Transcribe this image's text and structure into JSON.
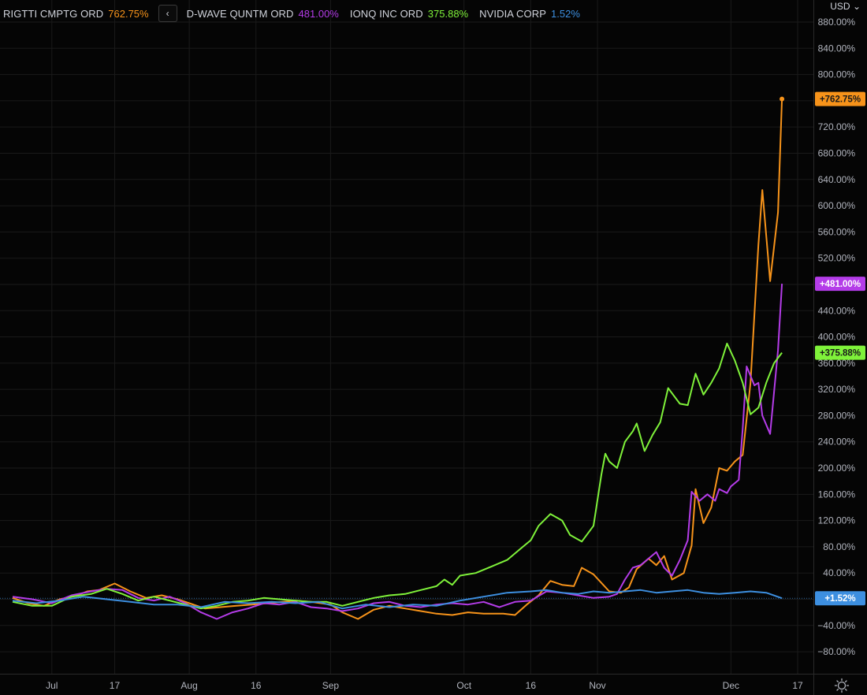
{
  "legend": {
    "items": [
      {
        "name": "RIGTTI CMPTG ORD",
        "value": "762.75%",
        "color": "#f7931a"
      },
      {
        "name": "D-WAVE QUNTM ORD",
        "value": "481.00%",
        "color": "#b43ce8"
      },
      {
        "name": "IONQ INC ORD",
        "value": "375.88%",
        "color": "#7ff23a"
      },
      {
        "name": "NVIDIA CORP",
        "value": "1.52%",
        "color": "#3d8fe0"
      }
    ]
  },
  "currency_label": "USD",
  "chart_data": {
    "type": "line",
    "y_unit": "%",
    "ylim": [
      -80,
      880
    ],
    "y_ticks": [
      880,
      840,
      800,
      760,
      720,
      680,
      640,
      600,
      560,
      520,
      480,
      440,
      400,
      360,
      320,
      280,
      240,
      200,
      160,
      120,
      80,
      40,
      0,
      -40,
      -80
    ],
    "y_tick_labels": [
      "880.00%",
      "840.00%",
      "800.00%",
      "",
      "720.00%",
      "680.00%",
      "640.00%",
      "600.00%",
      "560.00%",
      "520.00%",
      "",
      "440.00%",
      "400.00%",
      "360.00%",
      "320.00%",
      "280.00%",
      "240.00%",
      "200.00%",
      "160.00%",
      "120.00%",
      "80.00%",
      "40.00%",
      "",
      "−40.00%",
      "−80.00%"
    ],
    "x_ticks": [
      "Jul",
      "17",
      "Aug",
      "16",
      "Sep",
      "Oct",
      "16",
      "Nov",
      "Dec",
      "17"
    ],
    "x_tick_positions": [
      10,
      26,
      45,
      62,
      81,
      115,
      132,
      149,
      183,
      200
    ],
    "x_range": [
      0,
      205
    ],
    "grid": true,
    "baseline": 1.52,
    "series": [
      {
        "name": "RIGTTI CMPTG ORD",
        "color": "#f7931a",
        "last_label": "+762.75%",
        "last": 762.75,
        "points": [
          [
            0,
            2
          ],
          [
            4,
            -6
          ],
          [
            8,
            -10
          ],
          [
            12,
            0
          ],
          [
            16,
            5
          ],
          [
            19,
            12
          ],
          [
            22,
            14
          ],
          [
            26,
            24
          ],
          [
            30,
            12
          ],
          [
            34,
            2
          ],
          [
            38,
            6
          ],
          [
            42,
            0
          ],
          [
            45,
            -6
          ],
          [
            49,
            -14
          ],
          [
            53,
            -12
          ],
          [
            57,
            -10
          ],
          [
            61,
            -8
          ],
          [
            65,
            -6
          ],
          [
            69,
            -4
          ],
          [
            72,
            -2
          ],
          [
            76,
            -4
          ],
          [
            81,
            -8
          ],
          [
            84,
            -20
          ],
          [
            88,
            -30
          ],
          [
            92,
            -16
          ],
          [
            96,
            -10
          ],
          [
            100,
            -14
          ],
          [
            104,
            -18
          ],
          [
            108,
            -22
          ],
          [
            112,
            -24
          ],
          [
            116,
            -20
          ],
          [
            120,
            -22
          ],
          [
            125,
            -22
          ],
          [
            128,
            -24
          ],
          [
            131,
            -8
          ],
          [
            134,
            6
          ],
          [
            137,
            28
          ],
          [
            140,
            22
          ],
          [
            143,
            20
          ],
          [
            145,
            48
          ],
          [
            148,
            38
          ],
          [
            152,
            12
          ],
          [
            155,
            10
          ],
          [
            157,
            18
          ],
          [
            159,
            46
          ],
          [
            162,
            62
          ],
          [
            164,
            52
          ],
          [
            166,
            66
          ],
          [
            168,
            30
          ],
          [
            171,
            40
          ],
          [
            173,
            82
          ],
          [
            174,
            168
          ],
          [
            176,
            116
          ],
          [
            178,
            140
          ],
          [
            180,
            200
          ],
          [
            182,
            196
          ],
          [
            184,
            210
          ],
          [
            186,
            220
          ],
          [
            188,
            330
          ],
          [
            190,
            540
          ],
          [
            191,
            624
          ],
          [
            193,
            485
          ],
          [
            195,
            590
          ],
          [
            196,
            762.75
          ]
        ]
      },
      {
        "name": "D-WAVE QUNTM ORD",
        "color": "#b43ce8",
        "last_label": "+481.00%",
        "last": 481,
        "points": [
          [
            0,
            4
          ],
          [
            5,
            0
          ],
          [
            10,
            -6
          ],
          [
            15,
            6
          ],
          [
            20,
            12
          ],
          [
            24,
            16
          ],
          [
            28,
            14
          ],
          [
            32,
            2
          ],
          [
            36,
            -2
          ],
          [
            40,
            4
          ],
          [
            44,
            -6
          ],
          [
            48,
            -20
          ],
          [
            52,
            -30
          ],
          [
            56,
            -20
          ],
          [
            60,
            -14
          ],
          [
            64,
            -6
          ],
          [
            68,
            -8
          ],
          [
            72,
            -4
          ],
          [
            76,
            -12
          ],
          [
            80,
            -14
          ],
          [
            84,
            -18
          ],
          [
            88,
            -14
          ],
          [
            92,
            -6
          ],
          [
            96,
            -4
          ],
          [
            100,
            -10
          ],
          [
            104,
            -12
          ],
          [
            108,
            -8
          ],
          [
            112,
            -6
          ],
          [
            116,
            -8
          ],
          [
            120,
            -4
          ],
          [
            124,
            -12
          ],
          [
            128,
            -4
          ],
          [
            132,
            -2
          ],
          [
            136,
            12
          ],
          [
            140,
            10
          ],
          [
            144,
            6
          ],
          [
            148,
            2
          ],
          [
            152,
            4
          ],
          [
            154,
            8
          ],
          [
            156,
            30
          ],
          [
            158,
            48
          ],
          [
            160,
            52
          ],
          [
            162,
            62
          ],
          [
            164,
            72
          ],
          [
            166,
            48
          ],
          [
            168,
            36
          ],
          [
            170,
            60
          ],
          [
            172,
            90
          ],
          [
            173,
            164
          ],
          [
            175,
            150
          ],
          [
            177,
            160
          ],
          [
            179,
            150
          ],
          [
            180,
            168
          ],
          [
            182,
            162
          ],
          [
            183,
            172
          ],
          [
            185,
            182
          ],
          [
            186,
            260
          ],
          [
            187,
            355
          ],
          [
            189,
            326
          ],
          [
            190,
            330
          ],
          [
            191,
            280
          ],
          [
            193,
            252
          ],
          [
            195,
            380
          ],
          [
            196,
            481
          ]
        ]
      },
      {
        "name": "IONQ INC ORD",
        "color": "#7ff23a",
        "last_label": "+375.88%",
        "last": 375.88,
        "points": [
          [
            0,
            -4
          ],
          [
            5,
            -10
          ],
          [
            10,
            -10
          ],
          [
            15,
            4
          ],
          [
            20,
            8
          ],
          [
            24,
            16
          ],
          [
            28,
            8
          ],
          [
            32,
            -2
          ],
          [
            36,
            4
          ],
          [
            40,
            -2
          ],
          [
            44,
            -8
          ],
          [
            48,
            -14
          ],
          [
            52,
            -10
          ],
          [
            56,
            -4
          ],
          [
            60,
            -2
          ],
          [
            64,
            2
          ],
          [
            68,
            0
          ],
          [
            72,
            -2
          ],
          [
            76,
            -4
          ],
          [
            80,
            -4
          ],
          [
            84,
            -10
          ],
          [
            88,
            -4
          ],
          [
            92,
            2
          ],
          [
            96,
            6
          ],
          [
            100,
            8
          ],
          [
            104,
            14
          ],
          [
            108,
            20
          ],
          [
            110,
            30
          ],
          [
            112,
            22
          ],
          [
            114,
            36
          ],
          [
            118,
            40
          ],
          [
            122,
            50
          ],
          [
            126,
            60
          ],
          [
            130,
            80
          ],
          [
            132,
            90
          ],
          [
            134,
            112
          ],
          [
            137,
            130
          ],
          [
            140,
            120
          ],
          [
            142,
            98
          ],
          [
            145,
            88
          ],
          [
            148,
            112
          ],
          [
            150,
            190
          ],
          [
            151,
            222
          ],
          [
            152,
            210
          ],
          [
            154,
            200
          ],
          [
            156,
            240
          ],
          [
            158,
            256
          ],
          [
            159,
            268
          ],
          [
            161,
            226
          ],
          [
            163,
            250
          ],
          [
            165,
            270
          ],
          [
            167,
            322
          ],
          [
            170,
            298
          ],
          [
            172,
            296
          ],
          [
            174,
            344
          ],
          [
            176,
            312
          ],
          [
            178,
            330
          ],
          [
            180,
            352
          ],
          [
            182,
            390
          ],
          [
            184,
            364
          ],
          [
            186,
            330
          ],
          [
            188,
            282
          ],
          [
            190,
            292
          ],
          [
            192,
            330
          ],
          [
            194,
            360
          ],
          [
            196,
            375.88
          ]
        ]
      },
      {
        "name": "NVIDIA CORP",
        "color": "#3d8fe0",
        "last_label": "+1.52%",
        "last": 1.52,
        "points": [
          [
            0,
            -2
          ],
          [
            6,
            -6
          ],
          [
            12,
            -2
          ],
          [
            18,
            4
          ],
          [
            24,
            0
          ],
          [
            30,
            -4
          ],
          [
            36,
            -8
          ],
          [
            42,
            -8
          ],
          [
            48,
            -12
          ],
          [
            54,
            -4
          ],
          [
            60,
            -6
          ],
          [
            66,
            -4
          ],
          [
            72,
            -6
          ],
          [
            78,
            -4
          ],
          [
            84,
            -14
          ],
          [
            90,
            -8
          ],
          [
            96,
            -12
          ],
          [
            102,
            -8
          ],
          [
            108,
            -10
          ],
          [
            114,
            -2
          ],
          [
            120,
            4
          ],
          [
            126,
            10
          ],
          [
            132,
            12
          ],
          [
            136,
            14
          ],
          [
            140,
            10
          ],
          [
            144,
            8
          ],
          [
            148,
            12
          ],
          [
            152,
            10
          ],
          [
            156,
            12
          ],
          [
            160,
            14
          ],
          [
            164,
            10
          ],
          [
            168,
            12
          ],
          [
            172,
            14
          ],
          [
            176,
            10
          ],
          [
            180,
            8
          ],
          [
            184,
            10
          ],
          [
            188,
            12
          ],
          [
            192,
            10
          ],
          [
            196,
            1.52
          ]
        ]
      }
    ]
  }
}
